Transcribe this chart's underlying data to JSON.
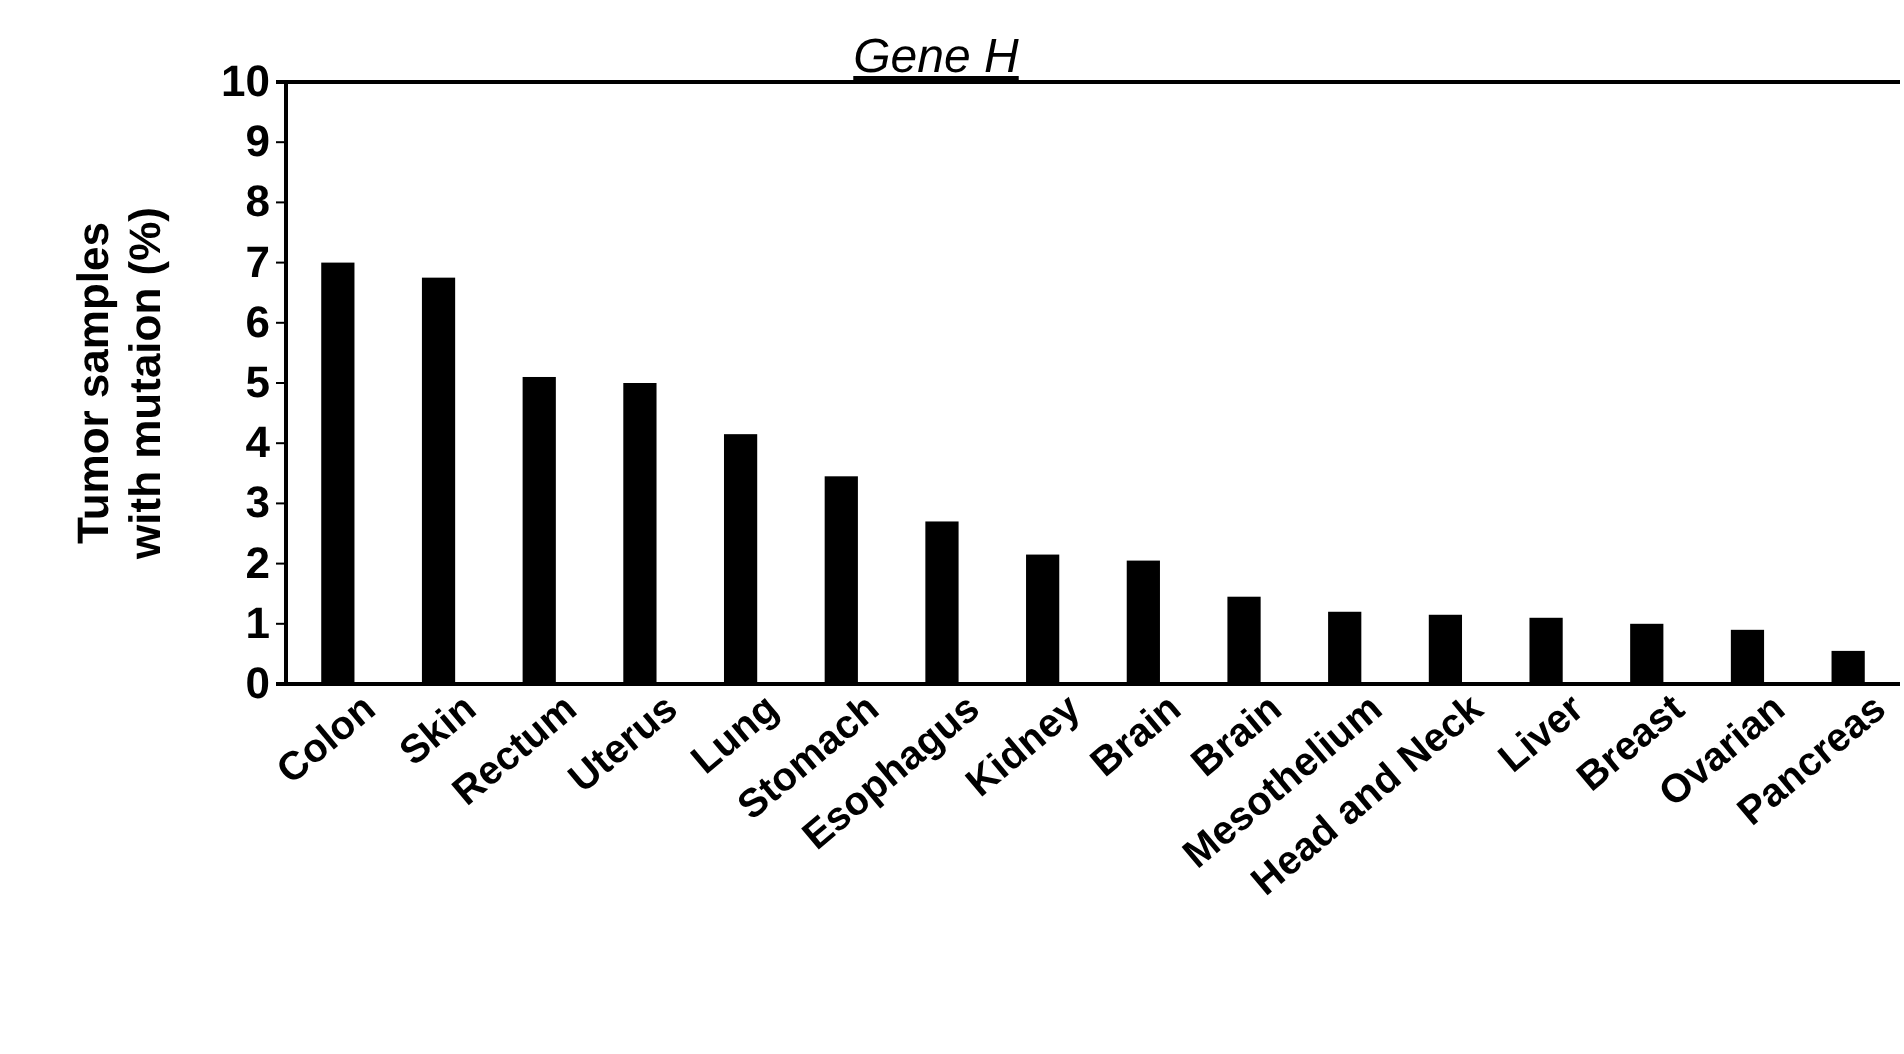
{
  "chart_data": {
    "type": "bar",
    "title": "Gene H",
    "ylabel": "Tumor samples\nwith mutaion (%)",
    "categories": [
      "Colon",
      "Skin",
      "Rectum",
      "Uterus",
      "Lung",
      "Stomach",
      "Esophagus",
      "Kidney",
      "Brain",
      "Brain",
      "Mesothelium",
      "Head and Neck",
      "Liver",
      "Breast",
      "Ovarian",
      "Pancreas"
    ],
    "values": [
      7.0,
      6.75,
      5.1,
      5.0,
      4.15,
      3.45,
      2.7,
      2.15,
      2.05,
      1.45,
      1.2,
      1.15,
      1.1,
      1.0,
      0.9,
      0.55
    ],
    "color": "#000000",
    "ylim": [
      0,
      10
    ],
    "yticks": [
      0,
      1,
      2,
      3,
      4,
      5,
      6,
      7,
      8,
      9,
      10
    ],
    "grid": false
  }
}
